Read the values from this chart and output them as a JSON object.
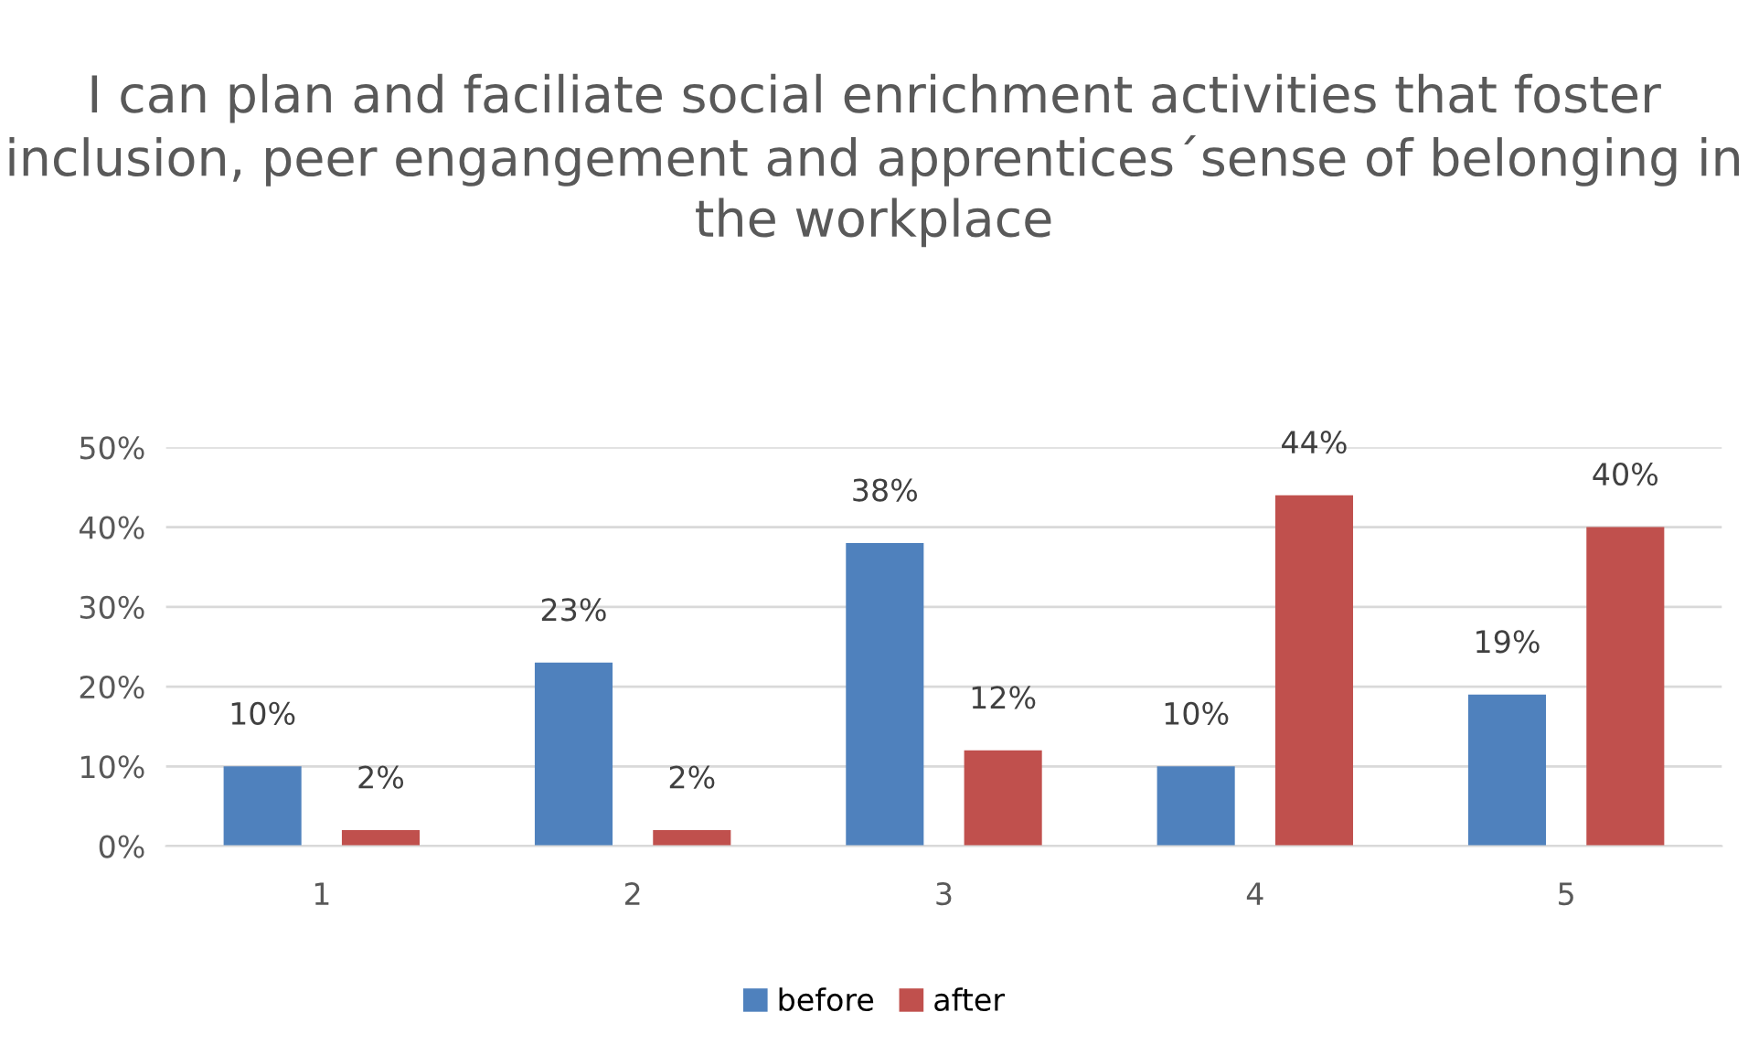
{
  "chart_data": {
    "type": "bar",
    "title": "I can plan and faciliate social enrichment activities that foster inclusion, peer engangement and apprentices´sense of belonging in the workplace",
    "categories": [
      "1",
      "2",
      "3",
      "4",
      "5"
    ],
    "series": [
      {
        "name": "before",
        "color": "#4f81bd",
        "values": [
          10,
          23,
          38,
          10,
          19
        ],
        "value_labels": [
          "10%",
          "23%",
          "38%",
          "10%",
          "19%"
        ]
      },
      {
        "name": "after",
        "color": "#c0504d",
        "values": [
          2,
          2,
          12,
          44,
          40
        ],
        "value_labels": [
          "2%",
          "2%",
          "12%",
          "44%",
          "40%"
        ]
      }
    ],
    "ylim": [
      0,
      50
    ],
    "yticks": [
      {
        "value": 0,
        "label": "0%"
      },
      {
        "value": 10,
        "label": "10%"
      },
      {
        "value": 20,
        "label": "20%"
      },
      {
        "value": 30,
        "label": "30%"
      },
      {
        "value": 40,
        "label": "40%"
      },
      {
        "value": 50,
        "label": "50%"
      }
    ],
    "grid": "y",
    "legend": "bottom"
  }
}
